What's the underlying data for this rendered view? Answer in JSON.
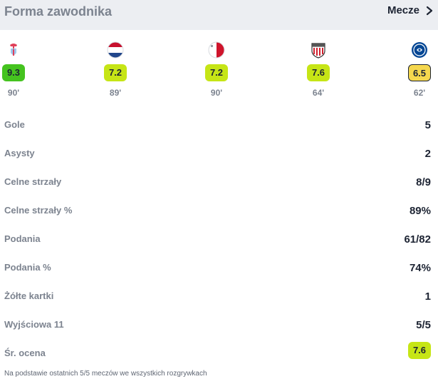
{
  "header": {
    "title": "Forma zawodnika",
    "link_label": "Mecze"
  },
  "matches": [
    {
      "team_logo": "celta-vigo-crest-icon",
      "rating": "9.3",
      "rating_color": "#45c31f",
      "minutes": "90'"
    },
    {
      "team_logo": "netherlands-flag-icon",
      "rating": "7.2",
      "rating_color": "#c6e516",
      "minutes": "89'"
    },
    {
      "team_logo": "malta-flag-icon",
      "rating": "7.2",
      "rating_color": "#c6e516",
      "minutes": "90'"
    },
    {
      "team_logo": "athletic-bilbao-crest-icon",
      "rating": "7.6",
      "rating_color": "#c6e516",
      "minutes": "64'"
    },
    {
      "team_logo": "chelsea-crest-icon",
      "rating": "6.5",
      "rating_color": "#f5d74e",
      "minutes": "62'"
    }
  ],
  "stats": [
    {
      "label": "Gole",
      "value": "5"
    },
    {
      "label": "Asysty",
      "value": "2"
    },
    {
      "label": "Celne strzały",
      "value": "8/9"
    },
    {
      "label": "Celne strzały %",
      "value": "89%"
    },
    {
      "label": "Podania",
      "value": "61/82"
    },
    {
      "label": "Podania %",
      "value": "74%"
    },
    {
      "label": "Żółte kartki",
      "value": "1"
    },
    {
      "label": "Wyjściowa 11",
      "value": "5/5"
    }
  ],
  "average": {
    "label": "Śr. ocena",
    "value": "7.6",
    "color": "#c6e516"
  },
  "footnote": "Na podstawie ostatnich 5/5 meczów we wszystkich rozgrywkach"
}
